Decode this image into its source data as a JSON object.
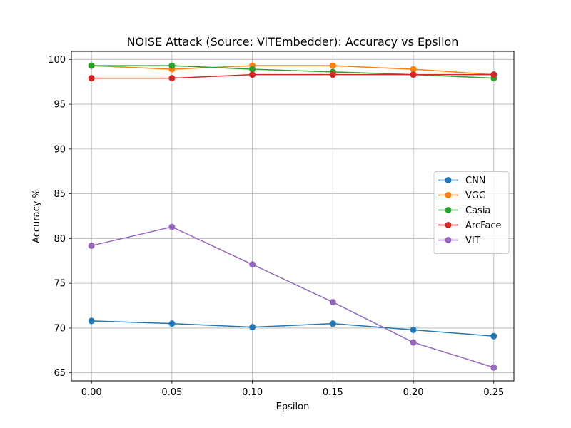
{
  "chart_data": {
    "type": "line",
    "title": "NOISE Attack (Source: ViTEmbedder): Accuracy vs Epsilon",
    "xlabel": "Epsilon",
    "ylabel": "Accuracy %",
    "x": [
      0.0,
      0.05,
      0.1,
      0.15,
      0.2,
      0.25
    ],
    "x_tick_labels": [
      "0.00",
      "0.05",
      "0.10",
      "0.15",
      "0.20",
      "0.25"
    ],
    "y_ticks": [
      65,
      70,
      75,
      80,
      85,
      90,
      95,
      100
    ],
    "y_tick_labels": [
      "65",
      "70",
      "75",
      "80",
      "85",
      "90",
      "95",
      "100"
    ],
    "xlim": [
      -0.0125,
      0.2625
    ],
    "ylim": [
      64.1,
      100.9
    ],
    "grid": true,
    "legend_position": "center-right",
    "series": [
      {
        "name": "CNN",
        "color": "#1f77b4",
        "values": [
          70.8,
          70.5,
          70.1,
          70.5,
          69.8,
          69.1
        ]
      },
      {
        "name": "VGG",
        "color": "#ff7f0e",
        "values": [
          99.3,
          98.9,
          99.3,
          99.3,
          98.9,
          98.3
        ]
      },
      {
        "name": "Casia",
        "color": "#2ca02c",
        "values": [
          99.3,
          99.3,
          98.9,
          98.6,
          98.3,
          97.9
        ]
      },
      {
        "name": "ArcFace",
        "color": "#d62728",
        "values": [
          97.9,
          97.9,
          98.3,
          98.3,
          98.3,
          98.3
        ]
      },
      {
        "name": "VIT",
        "color": "#9467bd",
        "values": [
          79.2,
          81.3,
          77.1,
          72.9,
          68.4,
          65.6
        ]
      }
    ]
  }
}
